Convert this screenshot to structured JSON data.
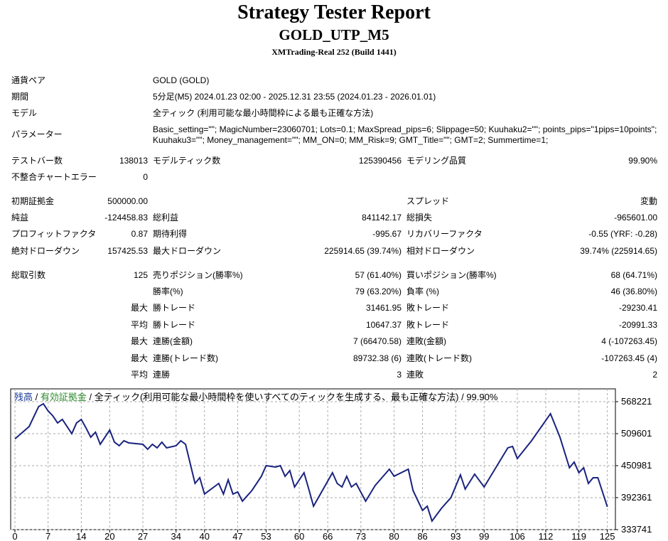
{
  "header": {
    "title": "Strategy Tester Report",
    "subtitle": "GOLD_UTP_M5",
    "server": "XMTrading-Real 252 (Build 1441)"
  },
  "info": [
    {
      "label": "通貨ペア",
      "value": "GOLD (GOLD)"
    },
    {
      "label": "期間",
      "value": "5分足(M5) 2024.01.23 02:00 - 2025.12.31 23:55 (2024.01.23 - 2026.01.01)"
    },
    {
      "label": "モデル",
      "value": "全ティック (利用可能な最小時間枠による最も正確な方法)"
    },
    {
      "label": "パラメーター",
      "value": "Basic_setting=\"\"; MagicNumber=23060701; Lots=0.1; MaxSpread_pips=6; Slippage=50; Kuuhaku2=\"\"; points_pips=\"1pips=10points\"; Kuuhaku3=\"\"; Money_management=\"\"; MM_ON=0; MM_Risk=9; GMT_Title=\"\"; GMT=2; Summertime=1;"
    }
  ],
  "table": {
    "rows": [
      [
        "テストバー数",
        "138013",
        "モデルティック数",
        "125390456",
        "モデリング品質",
        "99.90%"
      ],
      [
        "不整合チャートエラー",
        "0",
        null,
        null,
        null,
        null
      ],
      [
        "初期証拠金",
        "500000.00",
        null,
        null,
        "スプレッド",
        "変動"
      ],
      [
        "純益",
        "-124458.83",
        "総利益",
        "841142.17",
        "総損失",
        "-965601.00"
      ],
      [
        "プロフィットファクタ",
        "0.87",
        "期待利得",
        "-995.67",
        "リカバリーファクタ",
        "-0.55 (YRF: -0.28)"
      ],
      [
        "絶対ドローダウン",
        "157425.53",
        "最大ドローダウン",
        "225914.65 (39.74%)",
        "相対ドローダウン",
        "39.74% (225914.65)"
      ],
      [
        "総取引数",
        "125",
        "売りポジション(勝率%)",
        "57 (61.40%)",
        "買いポジション(勝率%)",
        "68 (64.71%)"
      ],
      [
        null,
        null,
        "勝率(%)",
        "79 (63.20%)",
        "負率 (%)",
        "46 (36.80%)"
      ],
      [
        null,
        "最大",
        "勝トレード",
        "31461.95",
        "敗トレード",
        "-29230.41"
      ],
      [
        null,
        "平均",
        "勝トレード",
        "10647.37",
        "敗トレード",
        "-20991.33"
      ],
      [
        null,
        "最大",
        "連勝(金額)",
        "7 (66470.58)",
        "連敗(金額)",
        "4 (-107263.45)"
      ],
      [
        null,
        "最大",
        "連勝(トレード数)",
        "89732.38 (6)",
        "連敗(トレード数)",
        "-107263.45 (4)"
      ],
      [
        null,
        "平均",
        "連勝",
        "3",
        "連敗",
        "2"
      ]
    ]
  },
  "chart_data": {
    "type": "line",
    "separator": "/",
    "equity_label": "有効証拠金",
    "equity_color": "#2e8b2e",
    "model_label": "全ティック(利用可能な最小時間枠を使いすべてのティックを生成する、最も正確な方法)",
    "quality_label": "99.90%",
    "x": [
      0,
      3,
      5,
      6,
      7,
      8,
      9,
      10,
      11,
      12,
      13,
      14,
      15,
      16,
      17,
      18,
      19,
      20,
      21,
      22,
      23,
      24,
      27,
      28,
      29,
      30,
      31,
      32,
      34,
      35,
      36,
      38,
      39,
      40,
      42,
      43,
      44,
      45,
      46,
      47,
      48,
      50,
      52,
      53,
      55,
      56,
      57,
      58,
      59,
      61,
      62,
      63,
      67,
      68,
      69,
      70,
      71,
      72,
      74,
      76,
      79,
      80,
      83,
      84,
      86,
      87,
      88,
      90,
      92,
      94,
      95,
      97,
      99,
      104,
      105,
      106,
      109,
      113,
      115,
      117,
      118,
      119,
      120,
      121,
      122,
      123,
      125
    ],
    "series": [
      {
        "name": "残高",
        "color": "#1a237e",
        "values": [
          500000,
          522700,
          559200,
          564400,
          551300,
          542200,
          529200,
          535700,
          522700,
          509600,
          529200,
          535700,
          520100,
          503100,
          512300,
          490100,
          503100,
          516200,
          494000,
          487500,
          496600,
          492700,
          490100,
          481000,
          490100,
          483600,
          494000,
          483600,
          487500,
          496600,
          490100,
          418400,
          428900,
          398900,
          411900,
          418400,
          398900,
          425000,
          398900,
          402800,
          385900,
          405400,
          431500,
          451000,
          448400,
          451000,
          431500,
          441900,
          411900,
          438000,
          408000,
          376700,
          438000,
          418400,
          411900,
          431500,
          411900,
          418400,
          385900,
          414500,
          444500,
          431500,
          444500,
          405400,
          368900,
          376700,
          349400,
          372800,
          392400,
          434100,
          408000,
          435400,
          411900,
          483600,
          486200,
          464000,
          496600,
          546100,
          503100,
          447100,
          457500,
          438000,
          447100,
          418400,
          428900,
          428900,
          375541.17
        ]
      }
    ],
    "xlim": [
      -0.9,
      126.7
    ],
    "ylim": [
      333741,
      591670
    ],
    "xticks": [
      0,
      7,
      14,
      20,
      27,
      34,
      40,
      47,
      53,
      60,
      66,
      73,
      80,
      86,
      93,
      99,
      106,
      112,
      119,
      125
    ],
    "yticks": [
      333741,
      392361,
      450981,
      509601,
      568221
    ],
    "grid": true
  }
}
